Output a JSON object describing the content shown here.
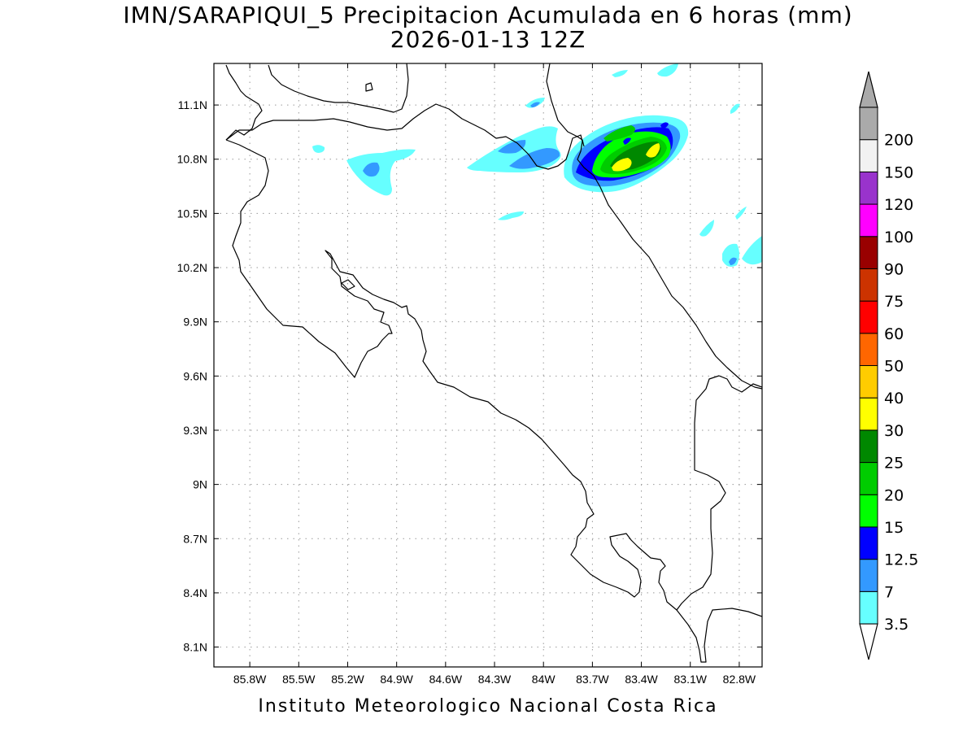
{
  "title": {
    "line1": "IMN/SARAPIQUI_5 Precipitacion Acumulada en 6 horas (mm)",
    "line2": "2026-01-13 12Z"
  },
  "footer": "Instituto Meteorologico Nacional Costa Rica",
  "map": {
    "lon_range": [
      -86.02,
      -82.66
    ],
    "lat_range": [
      7.99,
      11.33
    ],
    "lon_ticks": [
      {
        "value": -85.8,
        "label": "85.8W"
      },
      {
        "value": -85.5,
        "label": "85.5W"
      },
      {
        "value": -85.2,
        "label": "85.2W"
      },
      {
        "value": -84.9,
        "label": "84.9W"
      },
      {
        "value": -84.6,
        "label": "84.6W"
      },
      {
        "value": -84.3,
        "label": "84.3W"
      },
      {
        "value": -84.0,
        "label": "84W"
      },
      {
        "value": -83.7,
        "label": "83.7W"
      },
      {
        "value": -83.4,
        "label": "83.4W"
      },
      {
        "value": -83.1,
        "label": "83.1W"
      },
      {
        "value": -82.8,
        "label": "82.8W"
      }
    ],
    "lat_ticks": [
      {
        "value": 11.1,
        "label": "11.1N"
      },
      {
        "value": 10.8,
        "label": "10.8N"
      },
      {
        "value": 10.5,
        "label": "10.5N"
      },
      {
        "value": 10.2,
        "label": "10.2N"
      },
      {
        "value": 9.9,
        "label": "9.9N"
      },
      {
        "value": 9.6,
        "label": "9.6N"
      },
      {
        "value": 9.3,
        "label": "9.3N"
      },
      {
        "value": 9.0,
        "label": "9N"
      },
      {
        "value": 8.7,
        "label": "8.7N"
      },
      {
        "value": 8.4,
        "label": "8.4N"
      },
      {
        "value": 8.1,
        "label": "8.1N"
      }
    ],
    "grid": true,
    "precip_max_location": {
      "lon": -83.3,
      "lat": 10.75
    }
  },
  "colorbar": {
    "levels": [
      "3.5",
      "7",
      "12.5",
      "15",
      "20",
      "25",
      "30",
      "40",
      "50",
      "60",
      "75",
      "90",
      "100",
      "120",
      "150",
      "200"
    ],
    "colors": [
      "#66ffff",
      "#3399ff",
      "#0000ff",
      "#00ff00",
      "#00cc00",
      "#008800",
      "#ffff00",
      "#ffcc00",
      "#ff6600",
      "#ff0000",
      "#cc3300",
      "#990000",
      "#ff00ff",
      "#9933cc",
      "#f2f2f2",
      "#aaaaaa"
    ],
    "below_color": "#ffffff"
  }
}
